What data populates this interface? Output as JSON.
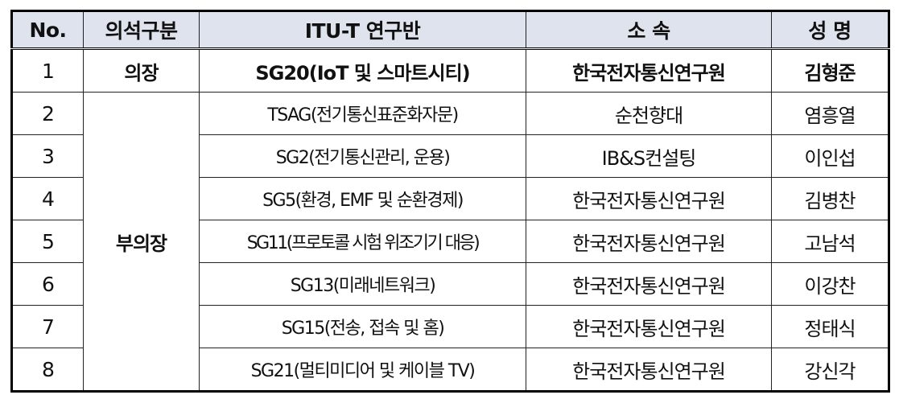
{
  "headers": [
    "No.",
    "의석구분",
    "ITU-T 연구반",
    "소 속",
    "성 명"
  ],
  "rows": [
    {
      "no": "1",
      "seat": "의장",
      "group": "SG20(IoT 및 스마트시티)",
      "affiliation": "한국전자통신연구원",
      "name": "김형준"
    },
    {
      "no": "2",
      "seat": "부의장",
      "group": "TSAG(전기통신표준화자문)",
      "affiliation": "순천향대",
      "name": "염흥열"
    },
    {
      "no": "3",
      "group": "SG2(전기통신관리, 운용)",
      "affiliation": "IB&S컨설팅",
      "name": "이인섭"
    },
    {
      "no": "4",
      "group": "SG5(환경, EMF 및 순환경제)",
      "affiliation": "한국전자통신연구원",
      "name": "김병찬"
    },
    {
      "no": "5",
      "group": "SG11(프로토콜 시험 위조기기 대응)",
      "affiliation": "한국전자통신연구원",
      "name": "고남석"
    },
    {
      "no": "6",
      "group": "SG13(미래네트워크)",
      "affiliation": "한국전자통신연구원",
      "name": "이강찬"
    },
    {
      "no": "7",
      "group": "SG15(전송, 접속 및 홈)",
      "affiliation": "한국전자통신연구원",
      "name": "정태식"
    },
    {
      "no": "8",
      "group": "SG21(멀티미디어 및 케이블 TV)",
      "affiliation": "한국전자통신연구원",
      "name": "강신각"
    }
  ]
}
